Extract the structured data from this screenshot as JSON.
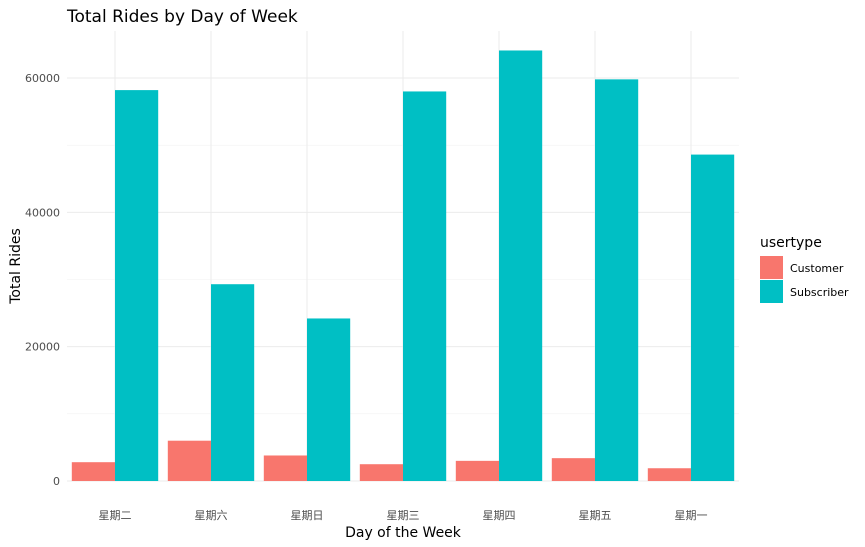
{
  "chart_data": {
    "type": "bar",
    "title": "Total Rides by Day of Week",
    "xlabel": "Day of the Week",
    "ylabel": "Total Rides",
    "categories": [
      "星期二",
      "星期六",
      "星期日",
      "星期三",
      "星期四",
      "星期五",
      "星期一"
    ],
    "series": [
      {
        "name": "Customer",
        "color": "#F8766D",
        "values": [
          2800,
          6000,
          3800,
          2500,
          3000,
          3400,
          1900
        ]
      },
      {
        "name": "Subscriber",
        "color": "#00BFC4",
        "values": [
          58200,
          29300,
          24200,
          58000,
          64100,
          59800,
          48600
        ]
      }
    ],
    "yticks": [
      0,
      20000,
      40000,
      60000
    ],
    "ytick_labels": [
      "0",
      "20000",
      "40000",
      "60000"
    ],
    "ylim": [
      0,
      67000
    ],
    "grid": true,
    "legend": {
      "title": "usertype",
      "placement": "right"
    }
  }
}
